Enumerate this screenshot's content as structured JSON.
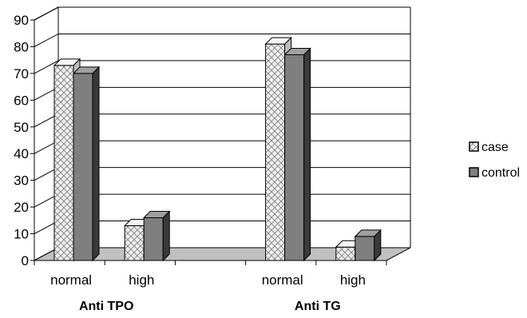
{
  "chart_data": {
    "type": "bar",
    "title": "",
    "xlabel": "",
    "ylabel": "",
    "ylim": [
      0,
      90
    ],
    "yticks": [
      "0",
      "10",
      "20",
      "30",
      "40",
      "50",
      "60",
      "70",
      "80",
      "90"
    ],
    "categories": [
      "normal",
      "high",
      "normal",
      "high"
    ],
    "groups": [
      {
        "label": "Anti TPO",
        "categories": [
          "normal",
          "high"
        ]
      },
      {
        "label": "Anti TG",
        "categories": [
          "normal",
          "high"
        ]
      }
    ],
    "series": [
      {
        "name": "case",
        "values": [
          73,
          13,
          81,
          5
        ],
        "pattern": "crosshatch",
        "color": "#e8e8e8"
      },
      {
        "name": "control",
        "values": [
          70,
          16,
          77,
          9
        ],
        "color": "#7f7f7f"
      }
    ],
    "grid": true,
    "legend": "right"
  }
}
